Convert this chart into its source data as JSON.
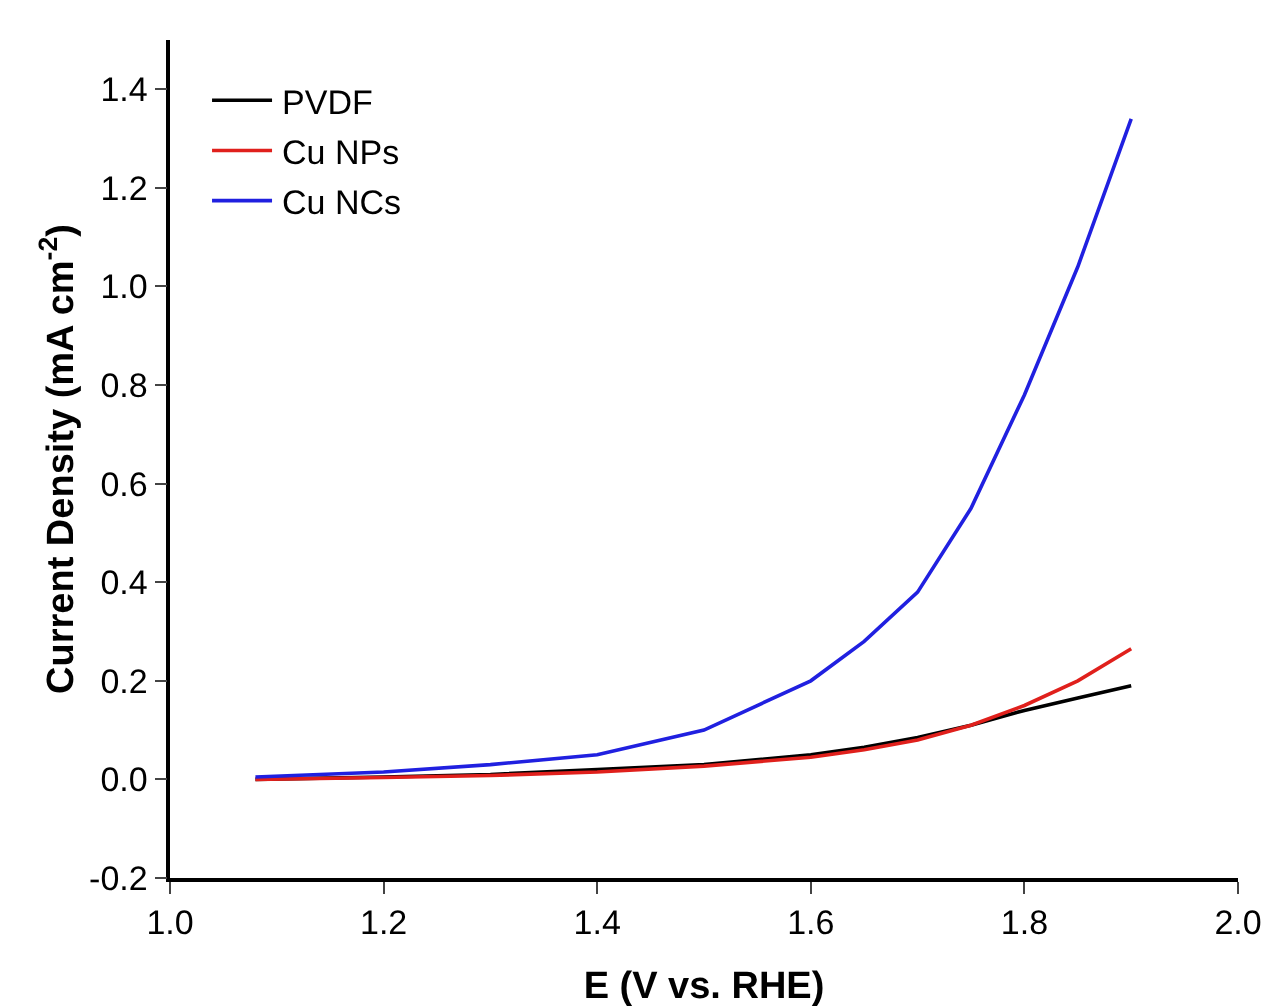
{
  "chart_data": {
    "type": "line",
    "xlabel": "E (V vs. RHE)",
    "ylabel": "Current Density (mA cm$^{-2}$)",
    "xlim": [
      1.0,
      2.0
    ],
    "xticks": [
      {
        "value": 1,
        "label": "1.0"
      },
      1.2,
      1.4,
      1.6,
      1.8,
      {
        "value": 2,
        "label": "2.0"
      }
    ],
    "ylim": [
      -0.2,
      1.5
    ],
    "yticks": [
      -0.2,
      {
        "value": 0,
        "label": "0.0"
      },
      0.2,
      0.4,
      0.6,
      0.8,
      {
        "value": 1,
        "label": "1.0"
      },
      1.2,
      1.4
    ],
    "grid": false,
    "legend": "top left",
    "line_style": "solid",
    "marker": "none",
    "x": [
      1.08,
      1.2,
      1.3,
      1.4,
      1.5,
      1.6,
      1.65,
      1.7,
      1.75,
      1.8,
      1.85,
      1.9
    ],
    "series": [
      {
        "name": "PVDF",
        "color": "#000000",
        "values": [
          0.0,
          0.005,
          0.01,
          0.02,
          0.03,
          0.05,
          0.065,
          0.085,
          0.11,
          0.14,
          0.165,
          0.19
        ]
      },
      {
        "name": "Cu NPs",
        "color": "#e0201c",
        "values": [
          0.0,
          0.004,
          0.008,
          0.015,
          0.027,
          0.045,
          0.06,
          0.08,
          0.11,
          0.15,
          0.2,
          0.265
        ]
      },
      {
        "name": "Cu NCs",
        "color": "#2020e0",
        "values": [
          0.005,
          0.015,
          0.03,
          0.05,
          0.1,
          0.2,
          0.28,
          0.38,
          0.55,
          0.78,
          1.04,
          1.34
        ]
      }
    ]
  }
}
